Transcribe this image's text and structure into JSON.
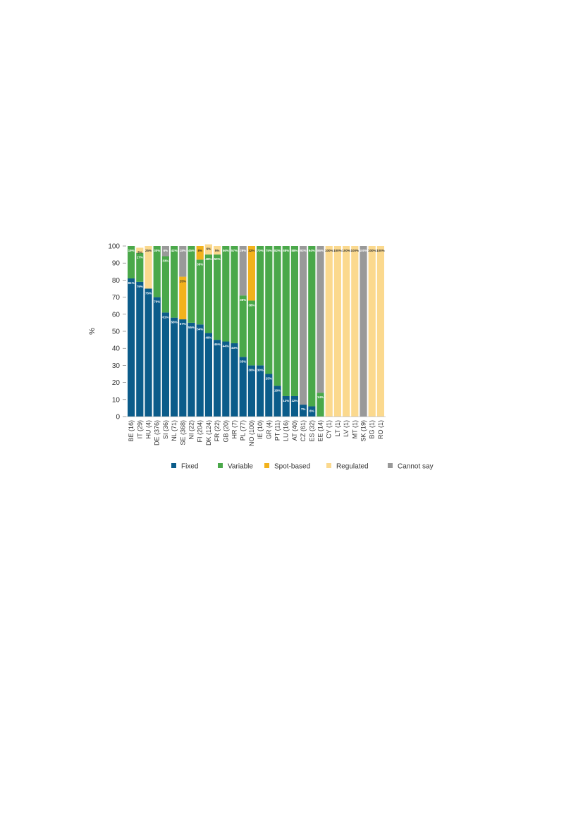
{
  "chart_data": {
    "type": "bar",
    "stacked": true,
    "ylabel": "%",
    "ylim": [
      0,
      100
    ],
    "yticks": [
      "0",
      "10",
      "20",
      "30",
      "40",
      "50",
      "60",
      "70",
      "80",
      "90",
      "100"
    ],
    "grid": false,
    "legend_position": "bottom",
    "categories": [
      "BE (16)",
      "IT (29)",
      "HU (4)",
      "DE (376)",
      "SI (36)",
      "NL (71)",
      "SE (368)",
      "NI (22)",
      "FI (204)",
      "DK (124)",
      "FR (22)",
      "GB (20)",
      "HR (7)",
      "PL (77)",
      "NO (100)",
      "IE (10)",
      "GR (4)",
      "PT (11)",
      "LU (16)",
      "AT (40)",
      "CZ (61)",
      "ES (32)",
      "EE (14)",
      "CY (1)",
      "LT (1)",
      "LV (1)",
      "MT (1)",
      "SK (19)",
      "BG (1)",
      "RO (1)"
    ],
    "series": [
      {
        "name": "Fixed",
        "color": "#0b5c8a",
        "values": [
          81,
          79,
          75,
          70,
          61,
          58,
          57,
          55,
          54,
          49,
          45,
          44,
          43,
          35,
          30,
          30,
          25,
          18,
          12,
          12,
          7,
          6,
          0,
          0,
          0,
          0,
          0,
          0,
          0,
          0
        ],
        "labels": [
          "81%",
          "79%",
          "75%",
          "70%",
          "61%",
          "58%",
          "57%",
          "55%",
          "54%",
          "49%",
          "45%",
          "44%",
          "43%",
          "35%",
          "30%",
          "30%",
          "25%",
          "18%",
          "12%",
          "12%",
          "7%",
          "6%",
          "",
          "",
          "",
          "",
          "",
          "",
          "",
          ""
        ]
      },
      {
        "name": "Variable",
        "color": "#4aa84a",
        "values": [
          19,
          17,
          0,
          30,
          33,
          42,
          0,
          45,
          38,
          46,
          50,
          56,
          57,
          36,
          38,
          70,
          75,
          82,
          88,
          88,
          0,
          94,
          14,
          0,
          0,
          0,
          0,
          0,
          0,
          0
        ],
        "labels": [
          "19%",
          "17%",
          "",
          "30%",
          "33%",
          "42%",
          "",
          "45%",
          "38%",
          "46%",
          "50%",
          "56%",
          "57%",
          "36%",
          "38%",
          "70%",
          "75%",
          "82%",
          "88%",
          "88%",
          "",
          "94%",
          "14%",
          "",
          "",
          "",
          "",
          "",
          "",
          ""
        ]
      },
      {
        "name": "Spot-based",
        "color": "#f2b21c",
        "values": [
          0,
          0,
          0,
          0,
          0,
          0,
          25,
          0,
          8,
          0,
          0,
          0,
          0,
          0,
          32,
          0,
          0,
          0,
          0,
          0,
          0,
          0,
          0,
          0,
          0,
          0,
          0,
          0,
          0,
          0
        ],
        "labels": [
          "",
          "",
          "",
          "",
          "",
          "",
          "25%",
          "",
          "8%",
          "",
          "",
          "",
          "",
          "",
          "32%",
          "",
          "",
          "",
          "",
          "",
          "",
          "",
          "",
          "",
          "",
          "",
          "",
          "",
          "",
          ""
        ]
      },
      {
        "name": "Regulated",
        "color": "#fbd98e",
        "values": [
          0,
          3,
          25,
          0,
          0,
          0,
          0,
          0,
          0,
          6,
          5,
          0,
          0,
          0,
          0,
          0,
          0,
          0,
          0,
          0,
          0,
          0,
          0,
          100,
          100,
          100,
          100,
          0,
          100,
          100
        ],
        "labels": [
          "",
          "3%",
          "25%",
          "",
          "",
          "",
          "",
          "",
          "",
          "6%",
          "5%",
          "",
          "",
          "",
          "",
          "",
          "",
          "",
          "",
          "",
          "",
          "",
          "",
          "100%",
          "100%",
          "100%",
          "100%",
          "",
          "100%",
          "100%"
        ]
      },
      {
        "name": "Cannot say",
        "color": "#999999",
        "values": [
          0,
          0,
          0,
          0,
          6,
          0,
          18,
          0,
          0,
          0,
          0,
          0,
          0,
          29,
          0,
          0,
          0,
          0,
          0,
          0,
          93,
          0,
          86,
          0,
          0,
          0,
          0,
          100,
          0,
          0
        ],
        "labels": [
          "",
          "",
          "",
          "",
          "6%",
          "",
          "18%",
          "",
          "",
          "",
          "",
          "",
          "",
          "29%",
          "",
          "",
          "",
          "",
          "",
          "",
          "93%",
          "",
          "86%",
          "",
          "",
          "",
          "",
          "100%",
          "",
          ""
        ]
      }
    ]
  }
}
